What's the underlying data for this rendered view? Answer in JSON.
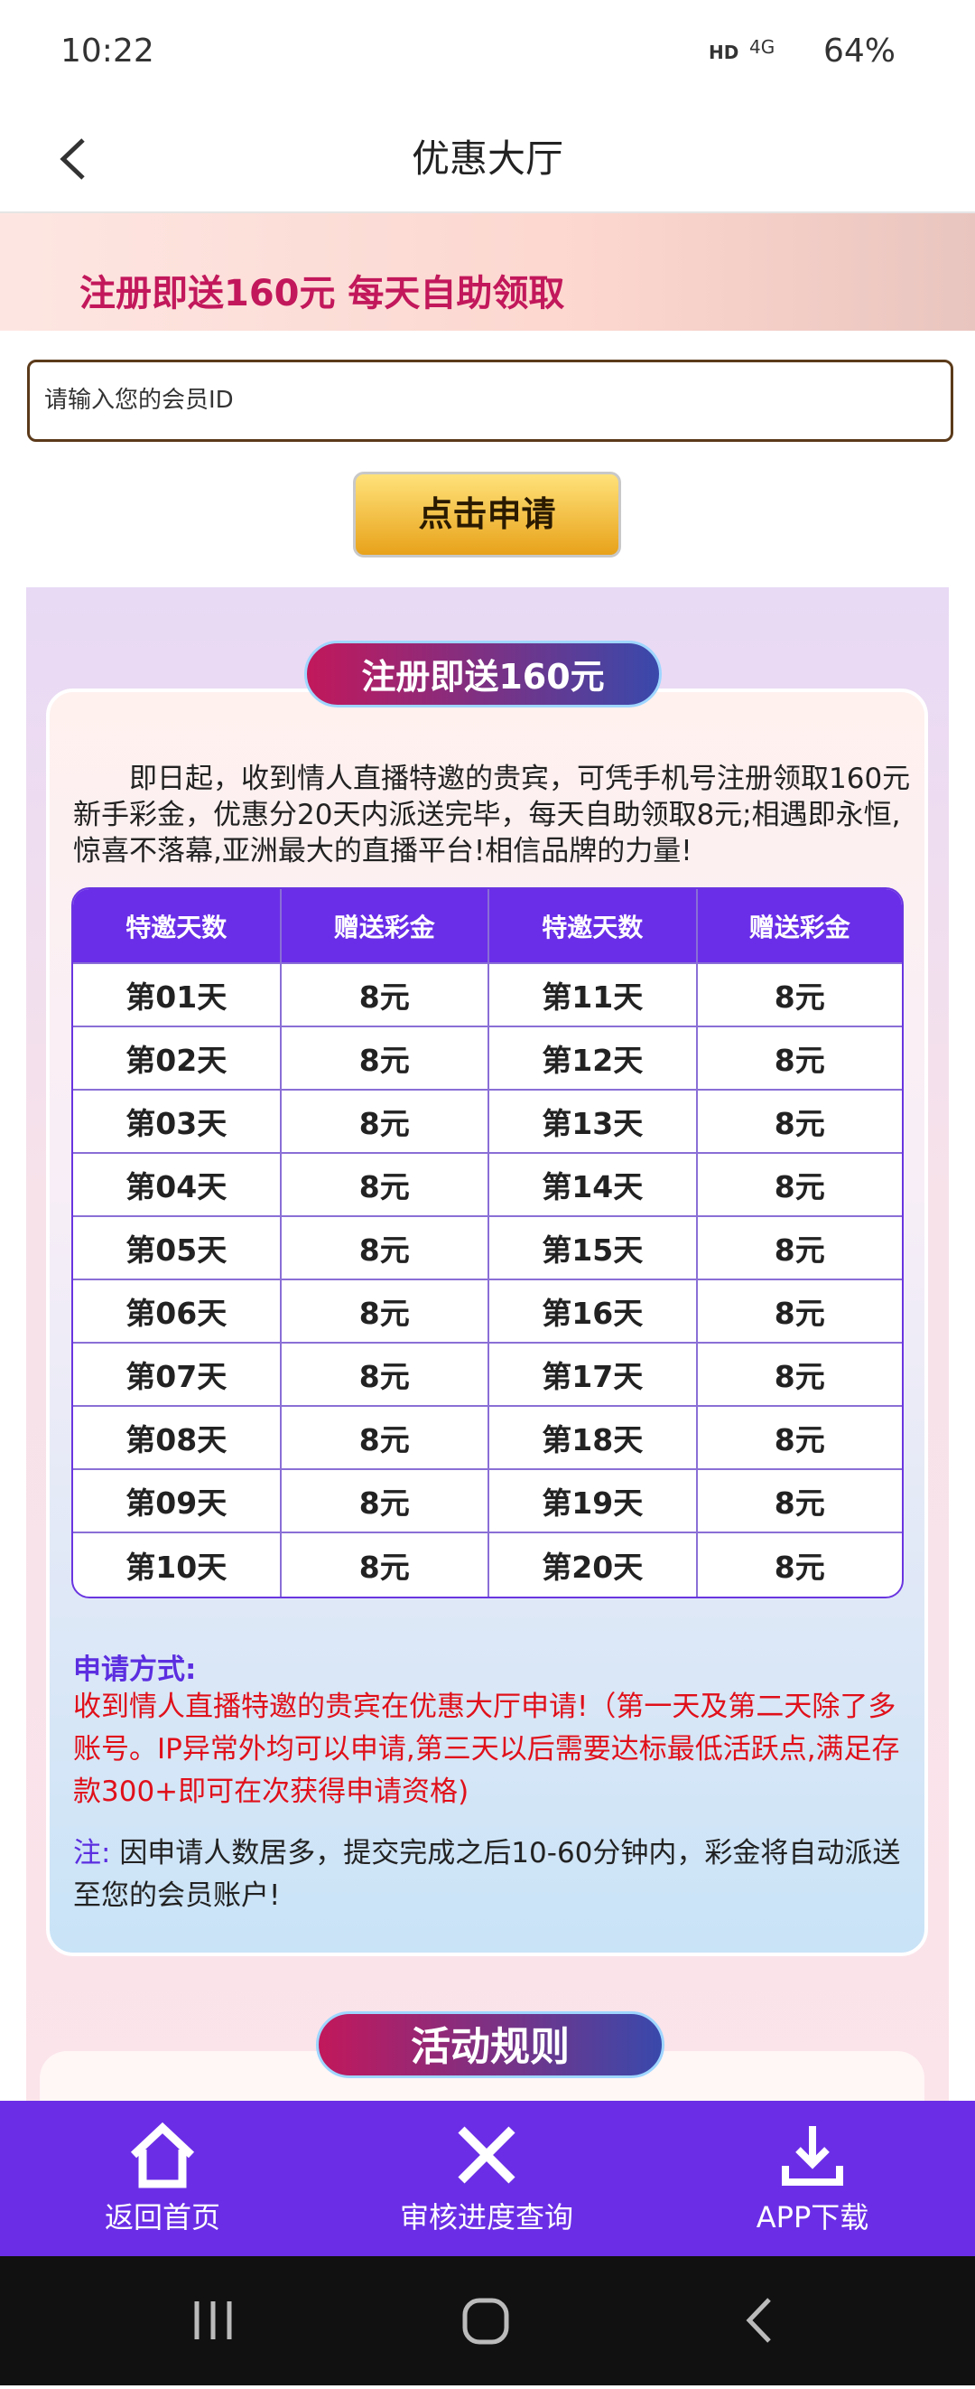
{
  "status_bar": {
    "time": "10:22",
    "network": "HD",
    "signal": "4G",
    "battery": "64%"
  },
  "header": {
    "title": "优惠大厅"
  },
  "banner": {
    "text": "注册即送160元 每天自助领取"
  },
  "form": {
    "placeholder": "请输入您的会员ID",
    "button": "点击申请"
  },
  "section": {
    "title": "注册即送160元",
    "intro": "即日起，收到情人直播特邀的贵宾，可凭手机号注册领取160元新手彩金，优惠分20天内派送完毕，每天自助领取8元;相遇即永恒,惊喜不落幕,亚洲最大的直播平台!相信品牌的力量!",
    "table": {
      "headers": [
        "特邀天数",
        "赠送彩金",
        "特邀天数",
        "赠送彩金"
      ],
      "rows": [
        [
          "第01天",
          "8元",
          "第11天",
          "8元"
        ],
        [
          "第02天",
          "8元",
          "第12天",
          "8元"
        ],
        [
          "第03天",
          "8元",
          "第13天",
          "8元"
        ],
        [
          "第04天",
          "8元",
          "第14天",
          "8元"
        ],
        [
          "第05天",
          "8元",
          "第15天",
          "8元"
        ],
        [
          "第06天",
          "8元",
          "第16天",
          "8元"
        ],
        [
          "第07天",
          "8元",
          "第17天",
          "8元"
        ],
        [
          "第08天",
          "8元",
          "第18天",
          "8元"
        ],
        [
          "第09天",
          "8元",
          "第19天",
          "8元"
        ],
        [
          "第10天",
          "8元",
          "第20天",
          "8元"
        ]
      ]
    },
    "apply_label": "申请方式:",
    "apply_text": "收到情人直播特邀的贵宾在优惠大厅申请!（第一天及第二天除了多账号。IP异常外均可以申请,第三天以后需要达标最低活跃点,满足存款300+即可在次获得申请资格)",
    "note_label": "注:",
    "note_text": "因申请人数居多，提交完成之后10-60分钟内，彩金将自动派送至您的会员账户!"
  },
  "rules": {
    "title": "活动规则"
  },
  "bottom_nav": [
    "返回首页",
    "审核进度查询",
    "APP下载"
  ]
}
